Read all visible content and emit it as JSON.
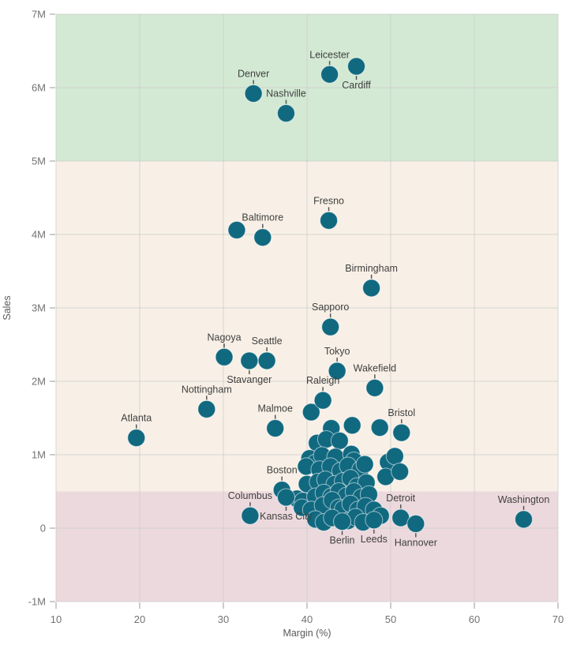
{
  "chart_data": {
    "type": "scatter",
    "title": "",
    "xlabel": "Margin (%)",
    "ylabel": "Sales",
    "xlim": [
      10,
      70
    ],
    "ylim_millions": [
      -1,
      7
    ],
    "x_ticks": [
      10,
      20,
      30,
      40,
      50,
      60,
      70
    ],
    "y_ticks": [
      {
        "value": 7,
        "label": "7M"
      },
      {
        "value": 6,
        "label": "6M"
      },
      {
        "value": 5,
        "label": "5M"
      },
      {
        "value": 4,
        "label": "4M"
      },
      {
        "value": 3,
        "label": "3M"
      },
      {
        "value": 2,
        "label": "2M"
      },
      {
        "value": 1,
        "label": "1M"
      },
      {
        "value": 0,
        "label": "0"
      },
      {
        "value": -1,
        "label": "-1M"
      }
    ],
    "grid": true,
    "legend": "none",
    "reference_bands": [
      {
        "from_millions": 5,
        "to_millions": 7,
        "color": "#d3e9d4"
      },
      {
        "from_millions": 0.5,
        "to_millions": 5,
        "color": "#f8f0e6"
      },
      {
        "from_millions": -1,
        "to_millions": 0.5,
        "color": "#ecd9dd"
      }
    ],
    "style": {
      "point_color": "#116980",
      "point_stroke": "rgba(255,255,255,0.55)",
      "point_radius": 11,
      "gridline_color": "#c9c9c9",
      "tick_label_color": "#737373",
      "axis_title_color": "#595959",
      "city_label_color": "#404040"
    },
    "labeled_points": [
      {
        "name": "Leicester",
        "x": 42.7,
        "y": 6.18,
        "label_pos": "above"
      },
      {
        "name": "Cardiff",
        "x": 45.9,
        "y": 6.29,
        "label_pos": "below"
      },
      {
        "name": "Denver",
        "x": 33.6,
        "y": 5.92,
        "label_pos": "above"
      },
      {
        "name": "Nashville",
        "x": 37.5,
        "y": 5.65,
        "label_pos": "above"
      },
      {
        "name": "Fresno",
        "x": 42.6,
        "y": 4.19,
        "label_pos": "above"
      },
      {
        "name": "Baltimore",
        "x": 34.7,
        "y": 3.96,
        "label_pos": "above"
      },
      {
        "name": "Birmingham",
        "x": 47.7,
        "y": 3.27,
        "label_pos": "above"
      },
      {
        "name": "Sapporo",
        "x": 42.8,
        "y": 2.74,
        "label_pos": "above"
      },
      {
        "name": "Nagoya",
        "x": 30.1,
        "y": 2.33,
        "label_pos": "above"
      },
      {
        "name": "Seattle",
        "x": 35.2,
        "y": 2.28,
        "label_pos": "above"
      },
      {
        "name": "Stavanger",
        "x": 33.1,
        "y": 2.28,
        "label_pos": "below"
      },
      {
        "name": "Tokyo",
        "x": 43.6,
        "y": 2.14,
        "label_pos": "above"
      },
      {
        "name": "Wakefield",
        "x": 48.1,
        "y": 1.91,
        "label_pos": "above"
      },
      {
        "name": "Nottingham",
        "x": 28.0,
        "y": 1.62,
        "label_pos": "above"
      },
      {
        "name": "Raleigh",
        "x": 41.9,
        "y": 1.74,
        "label_pos": "above"
      },
      {
        "name": "Malmoe",
        "x": 36.2,
        "y": 1.36,
        "label_pos": "above"
      },
      {
        "name": "Atlanta",
        "x": 19.6,
        "y": 1.23,
        "label_pos": "above"
      },
      {
        "name": "Bristol",
        "x": 51.3,
        "y": 1.3,
        "label_pos": "above"
      },
      {
        "name": "Boston",
        "x": 37.0,
        "y": 0.52,
        "label_pos": "above"
      },
      {
        "name": "Columbus",
        "x": 33.2,
        "y": 0.17,
        "label_pos": "above"
      },
      {
        "name": "Kansas City",
        "x": 37.5,
        "y": 0.42,
        "label_pos": "below"
      },
      {
        "name": "Berlin",
        "x": 44.2,
        "y": 0.09,
        "label_pos": "below"
      },
      {
        "name": "Leeds",
        "x": 48.0,
        "y": 0.11,
        "label_pos": "below"
      },
      {
        "name": "Detroit",
        "x": 51.2,
        "y": 0.14,
        "label_pos": "above"
      },
      {
        "name": "Hannover",
        "x": 53.0,
        "y": 0.06,
        "label_pos": "below"
      },
      {
        "name": "Washington",
        "x": 65.9,
        "y": 0.12,
        "label_pos": "above"
      }
    ],
    "unlabeled_points": [
      [
        31.6,
        4.06
      ],
      [
        40.5,
        1.58
      ],
      [
        42.9,
        1.36
      ],
      [
        45.4,
        1.4
      ],
      [
        48.7,
        1.37
      ],
      [
        41.2,
        1.16
      ],
      [
        42.3,
        1.21
      ],
      [
        43.9,
        1.19
      ],
      [
        40.3,
        0.95
      ],
      [
        41.0,
        0.89
      ],
      [
        41.8,
        0.99
      ],
      [
        43.4,
        0.97
      ],
      [
        45.3,
        1.01
      ],
      [
        45.6,
        0.92
      ],
      [
        49.7,
        0.9
      ],
      [
        50.5,
        0.98
      ],
      [
        39.9,
        0.84
      ],
      [
        41.5,
        0.8
      ],
      [
        42.8,
        0.84
      ],
      [
        44.0,
        0.78
      ],
      [
        44.9,
        0.85
      ],
      [
        46.4,
        0.8
      ],
      [
        46.9,
        0.87
      ],
      [
        49.4,
        0.7
      ],
      [
        51.1,
        0.77
      ],
      [
        40.0,
        0.6
      ],
      [
        41.3,
        0.63
      ],
      [
        42.2,
        0.66
      ],
      [
        43.3,
        0.6
      ],
      [
        44.3,
        0.64
      ],
      [
        45.2,
        0.68
      ],
      [
        46.0,
        0.57
      ],
      [
        47.1,
        0.62
      ],
      [
        38.8,
        0.4
      ],
      [
        39.5,
        0.37
      ],
      [
        41.0,
        0.43
      ],
      [
        42.0,
        0.48
      ],
      [
        42.9,
        0.43
      ],
      [
        43.8,
        0.5
      ],
      [
        44.7,
        0.44
      ],
      [
        45.6,
        0.5
      ],
      [
        46.5,
        0.42
      ],
      [
        47.4,
        0.46
      ],
      [
        39.4,
        0.28
      ],
      [
        40.5,
        0.25
      ],
      [
        41.9,
        0.31
      ],
      [
        43.0,
        0.38
      ],
      [
        43.8,
        0.28
      ],
      [
        44.3,
        0.26
      ],
      [
        45.2,
        0.33
      ],
      [
        46.1,
        0.25
      ],
      [
        47.0,
        0.3
      ],
      [
        48.0,
        0.25
      ],
      [
        41.0,
        0.12
      ],
      [
        42.0,
        0.08
      ],
      [
        43.0,
        0.14
      ],
      [
        44.9,
        0.1
      ],
      [
        45.8,
        0.15
      ],
      [
        46.7,
        0.08
      ],
      [
        48.8,
        0.17
      ]
    ]
  },
  "axes": {
    "x_title": "Margin (%)",
    "y_title": "Sales"
  }
}
